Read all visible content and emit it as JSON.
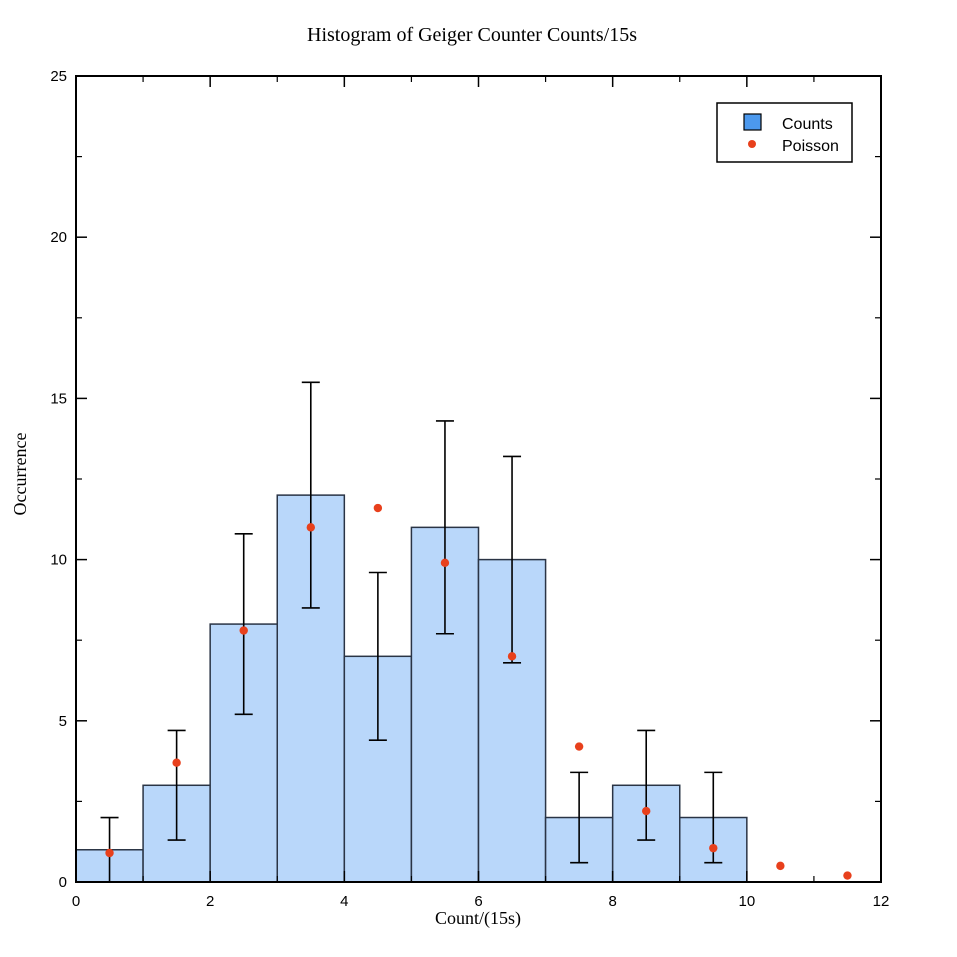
{
  "chart_data": {
    "type": "bar",
    "title": "Histogram of Geiger Counter Counts/15s",
    "xlabel": "Count/(15s)",
    "ylabel": "Occurrence",
    "xlim": [
      0,
      12
    ],
    "ylim": [
      0,
      25
    ],
    "xticks": [
      0,
      2,
      4,
      6,
      8,
      10,
      12
    ],
    "yticks": [
      0,
      5,
      10,
      15,
      20,
      25
    ],
    "grid": false,
    "legend_position": "top-right",
    "series": [
      {
        "name": "Counts",
        "kind": "histogram",
        "color": "#b9d7fa",
        "edge_color": "#2a3445",
        "bins": [
          {
            "start": 0,
            "end": 1,
            "value": 1,
            "err_low": 0,
            "err_high": 2
          },
          {
            "start": 1,
            "end": 2,
            "value": 3,
            "err_low": 1.3,
            "err_high": 4.7
          },
          {
            "start": 2,
            "end": 3,
            "value": 8,
            "err_low": 5.2,
            "err_high": 10.8
          },
          {
            "start": 3,
            "end": 4,
            "value": 12,
            "err_low": 8.5,
            "err_high": 15.5
          },
          {
            "start": 4,
            "end": 5,
            "value": 7,
            "err_low": 4.4,
            "err_high": 9.6
          },
          {
            "start": 5,
            "end": 6,
            "value": 11,
            "err_low": 7.7,
            "err_high": 14.3
          },
          {
            "start": 6,
            "end": 7,
            "value": 10,
            "err_low": 6.8,
            "err_high": 13.2
          },
          {
            "start": 7,
            "end": 8,
            "value": 2,
            "err_low": 0.6,
            "err_high": 3.4
          },
          {
            "start": 8,
            "end": 9,
            "value": 3,
            "err_low": 1.3,
            "err_high": 4.7
          },
          {
            "start": 9,
            "end": 10,
            "value": 2,
            "err_low": 0.6,
            "err_high": 3.4
          }
        ]
      },
      {
        "name": "Poisson",
        "kind": "scatter",
        "color": "#e8401c",
        "points": [
          {
            "x": 0.5,
            "y": 0.9
          },
          {
            "x": 1.5,
            "y": 3.7
          },
          {
            "x": 2.5,
            "y": 7.8
          },
          {
            "x": 3.5,
            "y": 11.0
          },
          {
            "x": 4.5,
            "y": 11.6
          },
          {
            "x": 5.5,
            "y": 9.9
          },
          {
            "x": 6.5,
            "y": 7.0
          },
          {
            "x": 7.5,
            "y": 4.2
          },
          {
            "x": 8.5,
            "y": 2.2
          },
          {
            "x": 9.5,
            "y": 1.05
          },
          {
            "x": 10.5,
            "y": 0.5
          },
          {
            "x": 11.5,
            "y": 0.2
          }
        ]
      }
    ]
  }
}
